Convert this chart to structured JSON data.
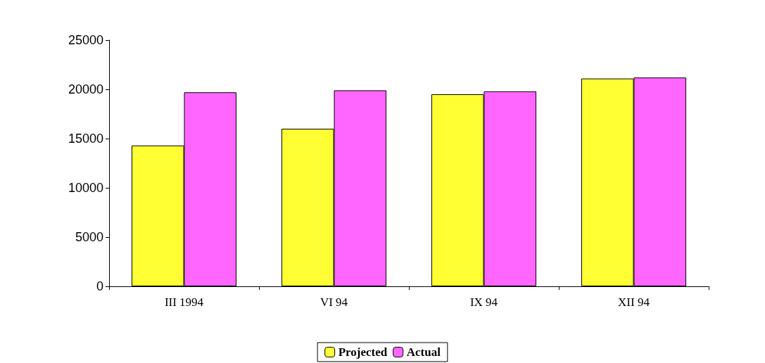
{
  "chart_data": {
    "type": "bar",
    "categories": [
      "III 1994",
      "VI 94",
      "IX 94",
      "XII 94"
    ],
    "series": [
      {
        "name": "Projected",
        "color": "#ffff33",
        "values": [
          14300,
          16000,
          19500,
          21100
        ]
      },
      {
        "name": "Actual",
        "color": "#ff66ff",
        "values": [
          19700,
          19900,
          19800,
          21200
        ]
      }
    ],
    "ylim": [
      0,
      25000
    ],
    "yticks": [
      0,
      5000,
      10000,
      15000,
      20000,
      25000
    ],
    "grid": false,
    "legend": "bottom"
  }
}
